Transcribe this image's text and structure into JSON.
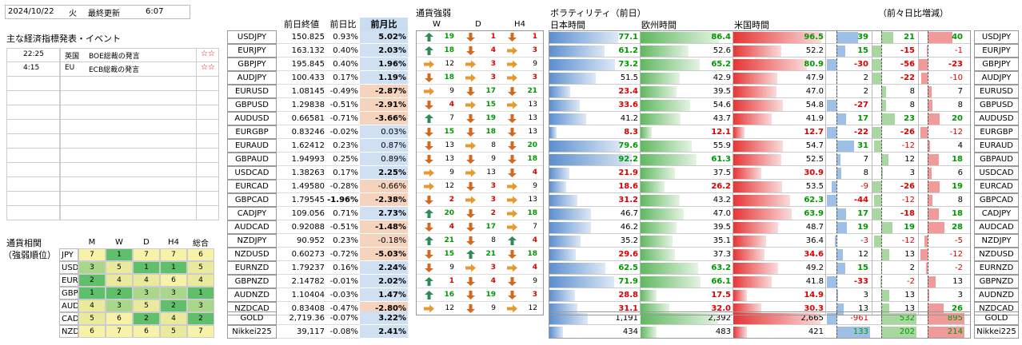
{
  "header": {
    "date": "2024/10/22",
    "weekday": "火",
    "updated_label": "最終更新",
    "updated_time": "6:07"
  },
  "events": {
    "title": "主な経済指標発表・イベント",
    "items": [
      {
        "time": "22:25",
        "country": "英国",
        "name": "BOE総裁の発言",
        "stars": "☆☆"
      },
      {
        "time": "4:15",
        "country": "EU",
        "name": "ECB総裁の発言",
        "stars": "☆☆"
      }
    ],
    "empty_rows": 10
  },
  "rank": {
    "title1": "通貨相関",
    "title2": "（強弱順位）",
    "cols": [
      "M",
      "W",
      "D",
      "H4",
      "総合"
    ],
    "rows": [
      {
        "ccy": "JPY",
        "v": [
          7,
          1,
          7,
          7,
          6
        ]
      },
      {
        "ccy": "USD",
        "v": [
          3,
          5,
          1,
          1,
          5
        ]
      },
      {
        "ccy": "EUR",
        "v": [
          2,
          4,
          4,
          6,
          4
        ]
      },
      {
        "ccy": "GBP",
        "v": [
          1,
          2,
          3,
          3,
          1
        ]
      },
      {
        "ccy": "AUD",
        "v": [
          4,
          3,
          5,
          2,
          3
        ]
      },
      {
        "ccy": "CAD",
        "v": [
          5,
          6,
          2,
          4,
          2
        ]
      },
      {
        "ccy": "NZD",
        "v": [
          6,
          7,
          6,
          5,
          7
        ]
      }
    ]
  },
  "prices": {
    "headers": [
      "前日終値",
      "前日比",
      "前月比"
    ],
    "rows": [
      [
        "USDJPY",
        "150.825",
        "0.93%",
        "5.02%"
      ],
      [
        "EURJPY",
        "163.132",
        "0.40%",
        "2.03%"
      ],
      [
        "GBPJPY",
        "195.845",
        "0.40%",
        "1.96%"
      ],
      [
        "AUDJPY",
        "100.433",
        "0.17%",
        "1.19%"
      ],
      [
        "EURUSD",
        "1.08145",
        "-0.49%",
        "-2.87%"
      ],
      [
        "GBPUSD",
        "1.29838",
        "-0.51%",
        "-2.91%"
      ],
      [
        "AUDUSD",
        "0.66581",
        "-0.71%",
        "-3.66%"
      ],
      [
        "EURGBP",
        "0.83246",
        "-0.02%",
        "0.03%"
      ],
      [
        "EURAUD",
        "1.62412",
        "0.23%",
        "0.87%"
      ],
      [
        "GBPAUD",
        "1.94993",
        "0.25%",
        "0.89%"
      ],
      [
        "USDCAD",
        "1.38263",
        "0.17%",
        "2.25%"
      ],
      [
        "EURCAD",
        "1.49580",
        "-0.28%",
        "-0.66%"
      ],
      [
        "GBPCAD",
        "1.79545",
        "-1.96%",
        "-2.38%"
      ],
      [
        "CADJPY",
        "109.056",
        "0.71%",
        "2.73%"
      ],
      [
        "AUDCAD",
        "0.92088",
        "-0.51%",
        "-1.48%"
      ],
      [
        "NZDJPY",
        "90.952",
        "0.23%",
        "-0.18%"
      ],
      [
        "NZDUSD",
        "0.60273",
        "-0.72%",
        "-5.03%"
      ],
      [
        "EURNZD",
        "1.79237",
        "0.16%",
        "2.24%"
      ],
      [
        "GBPNZD",
        "2.14782",
        "-0.01%",
        "2.02%"
      ],
      [
        "AUDNZD",
        "1.10404",
        "-0.03%",
        "1.47%"
      ],
      [
        "NZDCAD",
        "0.83408",
        "-0.47%",
        "-2.80%"
      ]
    ],
    "extra": [
      [
        "GOLD",
        "2,719.36",
        "-0.07%",
        "3.22%"
      ],
      [
        "Nikkei225",
        "39,117",
        "-0.08%",
        "2.41%"
      ]
    ]
  },
  "strength": {
    "title": "通貨強弱",
    "headers": [
      "W",
      "D",
      "H4"
    ],
    "rows": [
      [
        [
          "up",
          19
        ],
        [
          "down",
          1
        ],
        [
          "down",
          1
        ]
      ],
      [
        [
          "up",
          18
        ],
        [
          "down",
          4
        ],
        [
          "right",
          3
        ]
      ],
      [
        [
          "right",
          12
        ],
        [
          "right",
          3
        ],
        [
          "right",
          9
        ]
      ],
      [
        [
          "down",
          18
        ],
        [
          "right",
          3
        ],
        [
          "right",
          3
        ]
      ],
      [
        [
          "right",
          9
        ],
        [
          "down",
          17
        ],
        [
          "down",
          21
        ]
      ],
      [
        [
          "down",
          4
        ],
        [
          "right",
          15
        ],
        [
          "right",
          13
        ]
      ],
      [
        [
          "up",
          7
        ],
        [
          "down",
          19
        ],
        [
          "down",
          13
        ]
      ],
      [
        [
          "down",
          15
        ],
        [
          "down",
          18
        ],
        [
          "down",
          13
        ]
      ],
      [
        [
          "down",
          13
        ],
        [
          "right",
          8
        ],
        [
          "down",
          20
        ]
      ],
      [
        [
          "down",
          13
        ],
        [
          "down",
          9
        ],
        [
          "down",
          18
        ]
      ],
      [
        [
          "right",
          9
        ],
        [
          "right",
          13
        ],
        [
          "down",
          4
        ]
      ],
      [
        [
          "right",
          12
        ],
        [
          "down",
          3
        ],
        [
          "right",
          9
        ]
      ],
      [
        [
          "down",
          2
        ],
        [
          "right",
          3
        ],
        [
          "right",
          13
        ]
      ],
      [
        [
          "up",
          20
        ],
        [
          "down",
          2
        ],
        [
          "right",
          18
        ]
      ],
      [
        [
          "down",
          4
        ],
        [
          "down",
          17
        ],
        [
          "right",
          7
        ]
      ],
      [
        [
          "up",
          21
        ],
        [
          "down",
          8
        ],
        [
          "up",
          4
        ]
      ],
      [
        [
          "down",
          15
        ],
        [
          "up",
          21
        ],
        [
          "down",
          18
        ]
      ],
      [
        [
          "down",
          9
        ],
        [
          "right",
          3
        ],
        [
          "right",
          4
        ]
      ],
      [
        [
          "up",
          1
        ],
        [
          "down",
          4
        ],
        [
          "down",
          9
        ]
      ],
      [
        [
          "up",
          16
        ],
        [
          "down",
          19
        ],
        [
          "down",
          3
        ]
      ],
      [
        [
          "right",
          12
        ],
        [
          "down",
          9
        ],
        [
          "right",
          12
        ]
      ]
    ]
  },
  "volatility": {
    "title": "ボラティリティ（前日）",
    "cols": [
      "日本時間",
      "欧州時間",
      "米国時間"
    ],
    "change_title": "（前々日比増減）",
    "rows": [
      [
        77.1,
        86.4,
        96.5,
        39,
        21,
        40
      ],
      [
        61.2,
        52.6,
        52.2,
        15,
        -15,
        -1
      ],
      [
        73.2,
        65.2,
        80.9,
        -30,
        -56,
        -23
      ],
      [
        51.5,
        42.9,
        47.9,
        2,
        -22,
        -10
      ],
      [
        23.4,
        39.5,
        47.0,
        2,
        8,
        7
      ],
      [
        33.6,
        54.6,
        54.8,
        -27,
        8,
        8
      ],
      [
        41.2,
        43.7,
        41.9,
        17,
        23,
        20
      ],
      [
        8.3,
        12.1,
        12.7,
        -22,
        -26,
        -12
      ],
      [
        79.6,
        55.9,
        54.7,
        31,
        -12,
        4
      ],
      [
        92.2,
        61.3,
        52.5,
        7,
        12,
        18
      ],
      [
        21.9,
        37.5,
        30.9,
        8,
        3,
        6
      ],
      [
        18.6,
        26.2,
        53.5,
        -9,
        -26,
        19
      ],
      [
        31.2,
        43.2,
        62.3,
        -44,
        -12,
        8
      ],
      [
        46.7,
        47.0,
        63.9,
        17,
        -18,
        18
      ],
      [
        46.2,
        39.5,
        48.7,
        19,
        19,
        28
      ],
      [
        35.2,
        35.1,
        36.4,
        -3,
        -12,
        -5
      ],
      [
        29.6,
        37.3,
        34.6,
        12,
        13,
        -12
      ],
      [
        62.5,
        63.2,
        49.2,
        15,
        2,
        -2
      ],
      [
        71.9,
        66.1,
        41.8,
        -33,
        -2,
        13
      ],
      [
        28.8,
        17.5,
        14.9,
        3,
        13,
        3
      ],
      [
        31.1,
        32.0,
        30.3,
        13,
        13,
        26
      ]
    ],
    "gold": [
      1191,
      2392,
      2665,
      -961,
      532,
      895
    ],
    "nikkei": [
      434,
      483,
      421,
      133,
      202,
      214
    ]
  },
  "colors": {
    "up": "#2e8b57",
    "down": "#d2691e",
    "right": "#e59a2f",
    "blue": "#5b8fd0",
    "green": "#6ec06e",
    "red": "#e03a3a"
  }
}
